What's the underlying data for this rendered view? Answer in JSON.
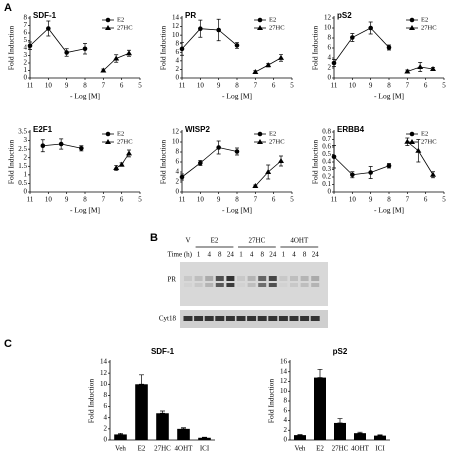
{
  "panel_labels": [
    "A",
    "C"
  ],
  "blot": {
    "label": "B",
    "groups": [
      "V",
      "E2",
      "27HC",
      "4OHT"
    ],
    "time_label": "Time (h)",
    "times": [
      "1",
      "4",
      "8",
      "24"
    ],
    "rows": [
      "PR",
      "Cyt18"
    ]
  },
  "chart_data": [
    {
      "type": "line",
      "title": "SDF-1",
      "xlabel": "- Log [M]",
      "ylabel": "Fold Induction",
      "xlim": [
        11,
        5
      ],
      "xticks": [
        11,
        10,
        9,
        8,
        7,
        6,
        5
      ],
      "ylim": [
        0,
        8
      ],
      "yticks": [
        0,
        1,
        2,
        3,
        4,
        5,
        6,
        7,
        8
      ],
      "series": [
        {
          "name": "E2",
          "marker": "circle",
          "color": "#000000",
          "x": [
            11,
            10,
            9,
            8
          ],
          "values": [
            4.3,
            6.6,
            3.4,
            3.9
          ],
          "errors": [
            0.5,
            1.0,
            0.5,
            0.7
          ]
        },
        {
          "name": "27HC",
          "marker": "triangle",
          "color": "#000000",
          "x": [
            7,
            6.3,
            5.6
          ],
          "values": [
            1.0,
            2.6,
            3.3
          ],
          "errors": [
            0.2,
            0.5,
            0.4
          ]
        }
      ]
    },
    {
      "type": "line",
      "title": "PR",
      "xlabel": "- Log [M]",
      "ylabel": "Fold Induction",
      "xlim": [
        11,
        5
      ],
      "xticks": [
        11,
        10,
        9,
        8,
        7,
        6,
        5
      ],
      "ylim": [
        0,
        14
      ],
      "yticks": [
        0,
        2,
        4,
        6,
        8,
        10,
        12,
        14
      ],
      "series": [
        {
          "name": "E2",
          "marker": "circle",
          "color": "#000000",
          "x": [
            11,
            10,
            9,
            8
          ],
          "values": [
            6.8,
            11.5,
            11.2,
            7.6
          ],
          "errors": [
            1.5,
            2.0,
            2.5,
            0.7
          ]
        },
        {
          "name": "27HC",
          "marker": "triangle",
          "color": "#000000",
          "x": [
            7,
            6.3,
            5.6
          ],
          "values": [
            1.4,
            3.0,
            4.7
          ],
          "errors": [
            0.3,
            0.4,
            0.8
          ]
        }
      ]
    },
    {
      "type": "line",
      "title": "pS2",
      "xlabel": "- Log [M]",
      "ylabel": "Fold Induction",
      "xlim": [
        11,
        5
      ],
      "xticks": [
        11,
        10,
        9,
        8,
        7,
        6,
        5
      ],
      "ylim": [
        0,
        12
      ],
      "yticks": [
        0,
        2,
        4,
        6,
        8,
        10,
        12
      ],
      "series": [
        {
          "name": "E2",
          "marker": "circle",
          "color": "#000000",
          "x": [
            11,
            10,
            9,
            8
          ],
          "values": [
            3.0,
            8.1,
            10.0,
            6.1
          ],
          "errors": [
            0.7,
            0.8,
            1.2,
            0.5
          ]
        },
        {
          "name": "27HC",
          "marker": "triangle",
          "color": "#000000",
          "x": [
            7,
            6.3,
            5.6
          ],
          "values": [
            1.3,
            2.2,
            1.8
          ],
          "errors": [
            0.3,
            0.9,
            0.3
          ]
        }
      ]
    },
    {
      "type": "line",
      "title": "E2F1",
      "xlabel": "- Log [M]",
      "ylabel": "Fold Induction",
      "xlim": [
        11,
        5
      ],
      "xticks": [
        11,
        10,
        9,
        8,
        7,
        6,
        5
      ],
      "ylim": [
        0,
        3.5
      ],
      "yticks": [
        0,
        0.5,
        1,
        1.5,
        2,
        2.5,
        3,
        3.5
      ],
      "series": [
        {
          "name": "E2",
          "marker": "circle",
          "color": "#000000",
          "x": [
            10.3,
            9.3,
            8.2
          ],
          "values": [
            2.7,
            2.8,
            2.55
          ],
          "errors": [
            0.35,
            0.3,
            0.15
          ]
        },
        {
          "name": "27HC",
          "marker": "triangle",
          "color": "#000000",
          "x": [
            6.3,
            6,
            5.6
          ],
          "values": [
            1.4,
            1.6,
            2.25
          ],
          "errors": [
            0.15,
            0.1,
            0.2
          ]
        }
      ]
    },
    {
      "type": "line",
      "title": "WISP2",
      "xlabel": "- Log [M]",
      "ylabel": "Fold Induction",
      "xlim": [
        11,
        5
      ],
      "xticks": [
        11,
        10,
        9,
        8,
        7,
        6,
        5
      ],
      "ylim": [
        0,
        12
      ],
      "yticks": [
        0,
        2,
        4,
        6,
        8,
        10,
        12
      ],
      "series": [
        {
          "name": "E2",
          "marker": "circle",
          "color": "#000000",
          "x": [
            11,
            10,
            9,
            8
          ],
          "values": [
            3.0,
            5.8,
            8.9,
            8.1
          ],
          "errors": [
            0.6,
            0.5,
            1.3,
            0.7
          ]
        },
        {
          "name": "27HC",
          "marker": "triangle",
          "color": "#000000",
          "x": [
            7,
            6.3,
            5.6
          ],
          "values": [
            1.2,
            4.0,
            6.2
          ],
          "errors": [
            0.2,
            1.4,
            1.0
          ]
        }
      ]
    },
    {
      "type": "line",
      "title": "ERBB4",
      "xlabel": "- Log [M]",
      "ylabel": "Fold Induction",
      "xlim": [
        11,
        5
      ],
      "xticks": [
        11,
        10,
        9,
        8,
        7,
        6,
        5
      ],
      "ylim": [
        0,
        0.8
      ],
      "yticks": [
        0,
        0.1,
        0.2,
        0.3,
        0.4,
        0.5,
        0.6,
        0.7,
        0.8
      ],
      "series": [
        {
          "name": "E2",
          "marker": "circle",
          "color": "#000000",
          "x": [
            11,
            10,
            9,
            8
          ],
          "values": [
            0.47,
            0.23,
            0.26,
            0.35
          ],
          "errors": [
            0.15,
            0.04,
            0.08,
            0.03
          ]
        },
        {
          "name": "27HC",
          "marker": "triangle",
          "color": "#000000",
          "x": [
            7,
            6.4,
            5.6
          ],
          "values": [
            0.67,
            0.55,
            0.23
          ],
          "errors": [
            0.05,
            0.15,
            0.04
          ]
        }
      ]
    },
    {
      "type": "bar",
      "title": "SDF-1",
      "ylabel": "Fold Induction",
      "categories": [
        "Veh",
        "E2",
        "27HC",
        "4OHT",
        "ICI"
      ],
      "color": "#000000",
      "values": [
        1.0,
        10.0,
        4.8,
        2.0,
        0.4
      ],
      "errors": [
        0.2,
        1.7,
        0.4,
        0.2,
        0.1
      ],
      "ylim": [
        0,
        14
      ],
      "yticks": [
        0,
        2,
        4,
        6,
        8,
        10,
        12,
        14
      ]
    },
    {
      "type": "bar",
      "title": "pS2",
      "ylabel": "Fold Induction",
      "categories": [
        "Veh",
        "E2",
        "27HC",
        "4OHT",
        "ICI"
      ],
      "color": "#000000",
      "values": [
        1.0,
        12.8,
        3.5,
        1.4,
        0.9
      ],
      "errors": [
        0.1,
        1.7,
        0.9,
        0.2,
        0.15
      ],
      "ylim": [
        0,
        16
      ],
      "yticks": [
        0,
        2,
        4,
        6,
        8,
        10,
        12,
        14,
        16
      ]
    }
  ]
}
